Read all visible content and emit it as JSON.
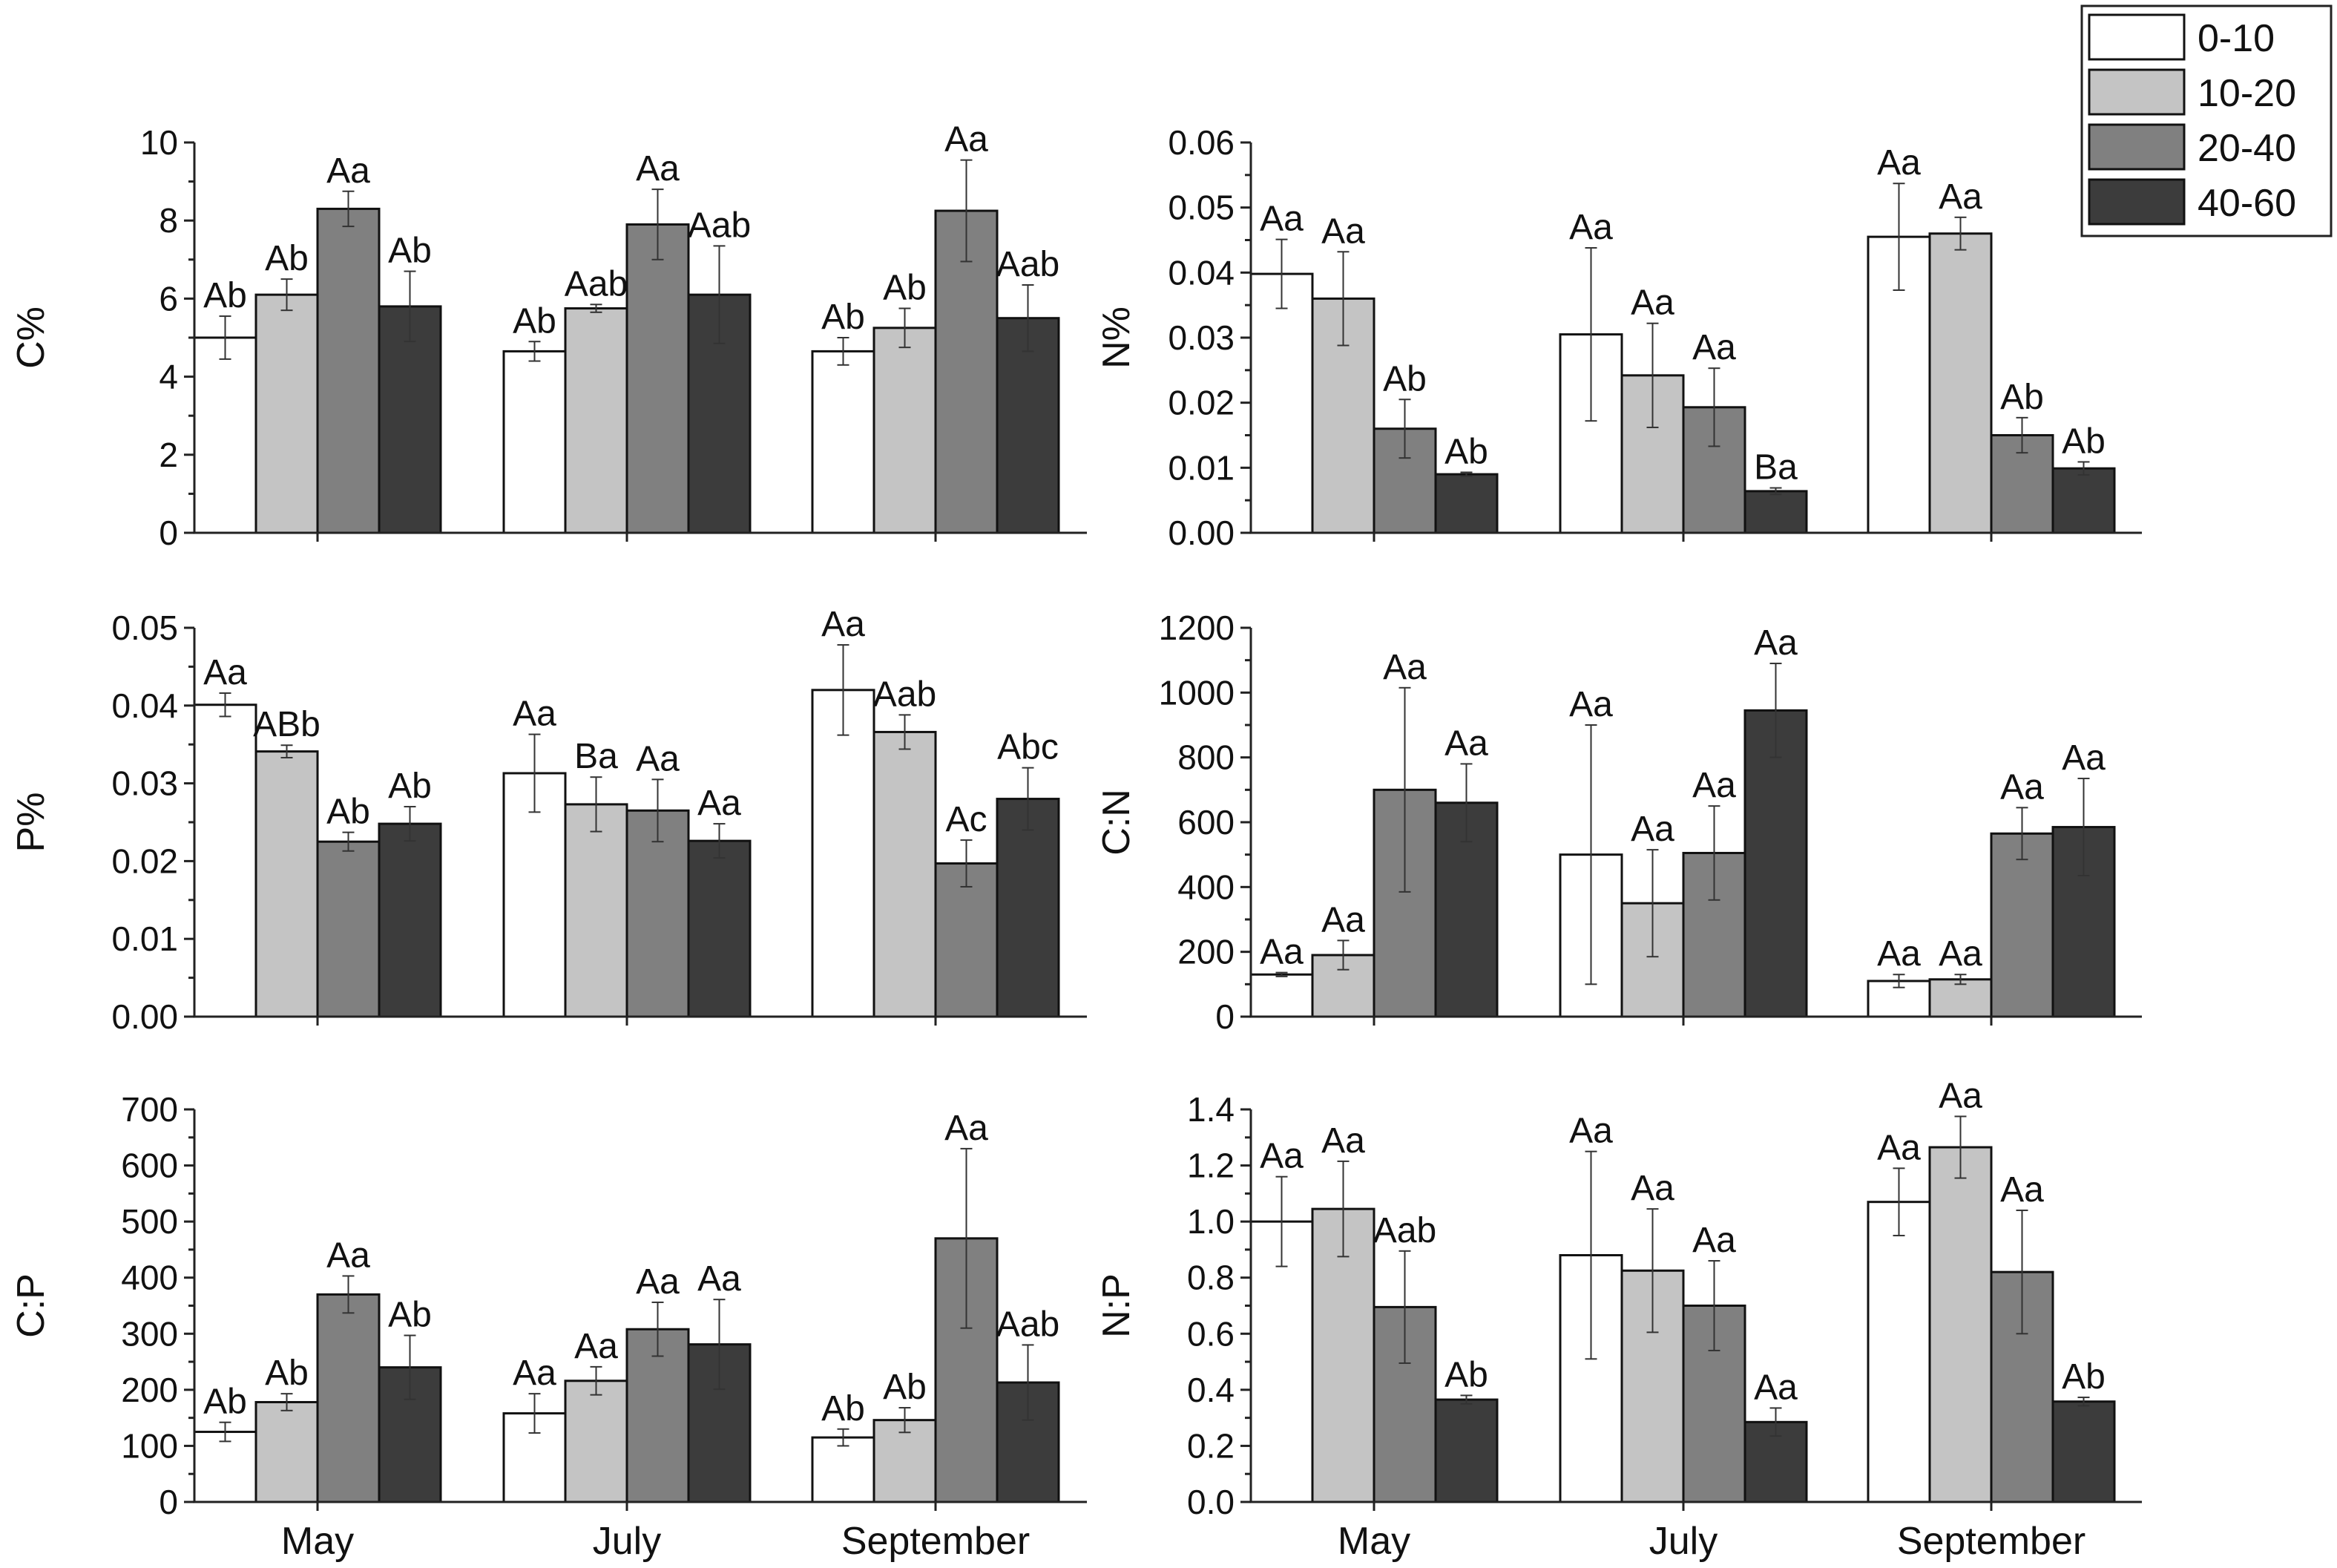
{
  "legend": {
    "entries": [
      {
        "label": "0-10",
        "color": "#ffffff"
      },
      {
        "label": "10-20",
        "color": "#c4c4c4"
      },
      {
        "label": "20-40",
        "color": "#808080"
      },
      {
        "label": "40-60",
        "color": "#3c3c3c"
      }
    ]
  },
  "chart_data": [
    {
      "type": "bar",
      "id": "c",
      "ylabel": "C%",
      "ylim": [
        0,
        10
      ],
      "yticks": [
        "0",
        "2",
        "4",
        "6",
        "8",
        "10"
      ],
      "ytick_values": [
        0,
        2,
        4,
        6,
        8,
        10
      ],
      "categories": [
        "May",
        "July",
        "September"
      ],
      "show_xticklabels": false,
      "series": [
        {
          "name": "0-10",
          "values": [
            5.0,
            4.65,
            4.65
          ],
          "errors": [
            0.55,
            0.25,
            0.35
          ],
          "labels": [
            "Ab",
            "Ab",
            "Ab"
          ]
        },
        {
          "name": "10-20",
          "values": [
            6.1,
            5.75,
            5.25
          ],
          "errors": [
            0.4,
            0.1,
            0.5
          ],
          "labels": [
            "Ab",
            "Aab",
            "Ab"
          ]
        },
        {
          "name": "20-40",
          "values": [
            8.3,
            7.9,
            8.25
          ],
          "errors": [
            0.45,
            0.9,
            1.3
          ],
          "labels": [
            "Aa",
            "Aa",
            "Aa"
          ]
        },
        {
          "name": "40-60",
          "values": [
            5.8,
            6.1,
            5.5
          ],
          "errors": [
            0.9,
            1.25,
            0.85
          ],
          "labels": [
            "Ab",
            "Aab",
            "Aab"
          ]
        }
      ]
    },
    {
      "type": "bar",
      "id": "n",
      "ylabel": "N%",
      "ylim": [
        0,
        0.06
      ],
      "yticks": [
        "0.00",
        "0.01",
        "0.02",
        "0.03",
        "0.04",
        "0.05",
        "0.06"
      ],
      "ytick_values": [
        0,
        0.01,
        0.02,
        0.03,
        0.04,
        0.05,
        0.06
      ],
      "categories": [
        "May",
        "July",
        "September"
      ],
      "show_xticklabels": false,
      "series": [
        {
          "name": "0-10",
          "values": [
            0.0398,
            0.0305,
            0.0455
          ],
          "errors": [
            0.0053,
            0.0133,
            0.0082
          ],
          "labels": [
            "Aa",
            "Aa",
            "Aa"
          ]
        },
        {
          "name": "10-20",
          "values": [
            0.036,
            0.0242,
            0.046
          ],
          "errors": [
            0.0072,
            0.008,
            0.0025
          ],
          "labels": [
            "Aa",
            "Aa",
            "Aa"
          ]
        },
        {
          "name": "20-40",
          "values": [
            0.016,
            0.0193,
            0.015
          ],
          "errors": [
            0.0045,
            0.006,
            0.0027
          ],
          "labels": [
            "Ab",
            "Aa",
            "Ab"
          ]
        },
        {
          "name": "40-60",
          "values": [
            0.009,
            0.0064,
            0.0099
          ],
          "errors": [
            0.0003,
            0.0005,
            0.001
          ],
          "labels": [
            "Ab",
            "Ba",
            "Ab"
          ]
        }
      ]
    },
    {
      "type": "bar",
      "id": "p",
      "ylabel": "P%",
      "ylim": [
        0,
        0.05
      ],
      "yticks": [
        "0.00",
        "0.01",
        "0.02",
        "0.03",
        "0.04",
        "0.05"
      ],
      "ytick_values": [
        0,
        0.01,
        0.02,
        0.03,
        0.04,
        0.05
      ],
      "categories": [
        "May",
        "July",
        "September"
      ],
      "show_xticklabels": false,
      "series": [
        {
          "name": "0-10",
          "values": [
            0.0401,
            0.0313,
            0.042
          ],
          "errors": [
            0.0015,
            0.005,
            0.0058
          ],
          "labels": [
            "Aa",
            "Aa",
            "Aa"
          ]
        },
        {
          "name": "10-20",
          "values": [
            0.0341,
            0.0273,
            0.0366
          ],
          "errors": [
            0.0008,
            0.0035,
            0.0022
          ],
          "labels": [
            "ABb",
            "Ba",
            "Aab"
          ]
        },
        {
          "name": "20-40",
          "values": [
            0.0225,
            0.0265,
            0.0197
          ],
          "errors": [
            0.0012,
            0.004,
            0.003
          ],
          "labels": [
            "Ab",
            "Aa",
            "Ac"
          ]
        },
        {
          "name": "40-60",
          "values": [
            0.0248,
            0.0226,
            0.028
          ],
          "errors": [
            0.0022,
            0.0022,
            0.004
          ],
          "labels": [
            "Ab",
            "Aa",
            "Abc"
          ]
        }
      ]
    },
    {
      "type": "bar",
      "id": "cn",
      "ylabel": "C:N",
      "ylim": [
        0,
        1200
      ],
      "yticks": [
        "0",
        "200",
        "400",
        "600",
        "800",
        "1000",
        "1200"
      ],
      "ytick_values": [
        0,
        200,
        400,
        600,
        800,
        1000,
        1200
      ],
      "categories": [
        "May",
        "July",
        "September"
      ],
      "show_xticklabels": false,
      "series": [
        {
          "name": "0-10",
          "values": [
            130,
            500,
            110
          ],
          "errors": [
            6,
            400,
            20
          ],
          "labels": [
            "Aa",
            "Aa",
            "Aa"
          ]
        },
        {
          "name": "10-20",
          "values": [
            190,
            350,
            115
          ],
          "errors": [
            45,
            165,
            15
          ],
          "labels": [
            "Aa",
            "Aa",
            "Aa"
          ]
        },
        {
          "name": "20-40",
          "values": [
            700,
            505,
            565
          ],
          "errors": [
            315,
            145,
            80
          ],
          "labels": [
            "Aa",
            "Aa",
            "Aa"
          ]
        },
        {
          "name": "40-60",
          "values": [
            660,
            945,
            585
          ],
          "errors": [
            120,
            145,
            150
          ],
          "labels": [
            "Aa",
            "Aa",
            "Aa"
          ]
        }
      ]
    },
    {
      "type": "bar",
      "id": "cp",
      "ylabel": "C:P",
      "ylim": [
        0,
        700
      ],
      "yticks": [
        "0",
        "100",
        "200",
        "300",
        "400",
        "500",
        "600",
        "700"
      ],
      "ytick_values": [
        0,
        100,
        200,
        300,
        400,
        500,
        600,
        700
      ],
      "categories": [
        "May",
        "July",
        "September"
      ],
      "show_xticklabels": true,
      "series": [
        {
          "name": "0-10",
          "values": [
            125,
            158,
            115
          ],
          "errors": [
            17,
            35,
            15
          ],
          "labels": [
            "Ab",
            "Aa",
            "Ab"
          ]
        },
        {
          "name": "10-20",
          "values": [
            178,
            216,
            146
          ],
          "errors": [
            15,
            25,
            22
          ],
          "labels": [
            "Ab",
            "Aa",
            "Ab"
          ]
        },
        {
          "name": "20-40",
          "values": [
            370,
            308,
            470
          ],
          "errors": [
            33,
            48,
            160
          ],
          "labels": [
            "Aa",
            "Aa",
            "Aa"
          ]
        },
        {
          "name": "40-60",
          "values": [
            240,
            281,
            213
          ],
          "errors": [
            57,
            80,
            67
          ],
          "labels": [
            "Ab",
            "Aa",
            "Aab"
          ]
        }
      ]
    },
    {
      "type": "bar",
      "id": "np",
      "ylabel": "N:P",
      "ylim": [
        0,
        1.4
      ],
      "yticks": [
        "0.0",
        "0.2",
        "0.4",
        "0.6",
        "0.8",
        "1.0",
        "1.2",
        "1.4"
      ],
      "ytick_values": [
        0,
        0.2,
        0.4,
        0.6,
        0.8,
        1.0,
        1.2,
        1.4
      ],
      "categories": [
        "May",
        "July",
        "September"
      ],
      "show_xticklabels": true,
      "series": [
        {
          "name": "0-10",
          "values": [
            1.0,
            0.88,
            1.07
          ],
          "errors": [
            0.16,
            0.37,
            0.12
          ],
          "labels": [
            "Aa",
            "Aa",
            "Aa"
          ]
        },
        {
          "name": "10-20",
          "values": [
            1.045,
            0.825,
            1.265
          ],
          "errors": [
            0.17,
            0.22,
            0.11
          ],
          "labels": [
            "Aa",
            "Aa",
            "Aa"
          ]
        },
        {
          "name": "20-40",
          "values": [
            0.695,
            0.7,
            0.82
          ],
          "errors": [
            0.2,
            0.16,
            0.22
          ],
          "labels": [
            "Aab",
            "Aa",
            "Aa"
          ]
        },
        {
          "name": "40-60",
          "values": [
            0.365,
            0.285,
            0.358
          ],
          "errors": [
            0.015,
            0.05,
            0.015
          ],
          "labels": [
            "Ab",
            "Aa",
            "Ab"
          ]
        }
      ]
    }
  ]
}
